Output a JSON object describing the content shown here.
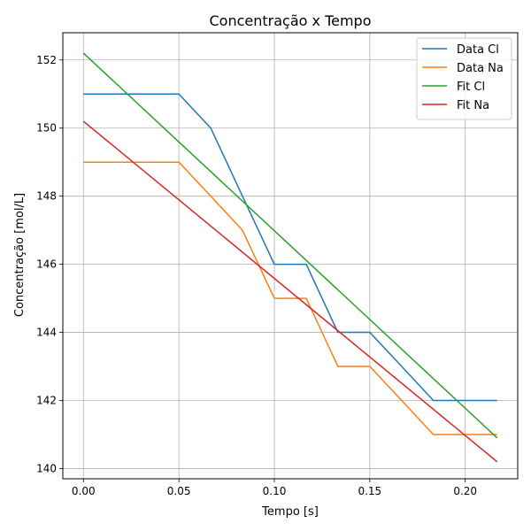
{
  "chart_data": {
    "type": "line",
    "title": "Concentração x Tempo",
    "xlabel": "Tempo [s]",
    "ylabel": "Concentração [mol/L]",
    "xlim": [
      -0.0108,
      0.2275
    ],
    "ylim": [
      139.7,
      152.8
    ],
    "xticks": [
      0.0,
      0.05,
      0.1,
      0.15,
      0.2
    ],
    "xtick_labels": [
      "0.00",
      "0.05",
      "0.10",
      "0.15",
      "0.20"
    ],
    "yticks": [
      140,
      142,
      144,
      146,
      148,
      150,
      152
    ],
    "ytick_labels": [
      "140",
      "142",
      "144",
      "146",
      "148",
      "150",
      "152"
    ],
    "grid": true,
    "legend_position": "top-right",
    "series": [
      {
        "name": "Data Cl",
        "color": "#1f77b4",
        "x": [
          0.0,
          0.0167,
          0.0333,
          0.05,
          0.0667,
          0.0833,
          0.1,
          0.1167,
          0.1333,
          0.15,
          0.1667,
          0.1833,
          0.2,
          0.2167
        ],
        "y": [
          151,
          151,
          151,
          151,
          150,
          148,
          146,
          146,
          144,
          144,
          143,
          142,
          142,
          142
        ]
      },
      {
        "name": "Data Na",
        "color": "#ff7f0e",
        "x": [
          0.0,
          0.0167,
          0.0333,
          0.05,
          0.0667,
          0.0833,
          0.1,
          0.1167,
          0.1333,
          0.15,
          0.1667,
          0.1833,
          0.2,
          0.2167
        ],
        "y": [
          149,
          149,
          149,
          149,
          148,
          147,
          145,
          145,
          143,
          143,
          142,
          141,
          141,
          141
        ]
      },
      {
        "name": "Fit Cl",
        "color": "#2ca02c",
        "x": [
          0.0,
          0.2167
        ],
        "y": [
          152.2,
          140.9
        ]
      },
      {
        "name": "Fit Na",
        "color": "#d62728",
        "x": [
          0.0,
          0.2167
        ],
        "y": [
          150.2,
          140.2
        ]
      }
    ]
  }
}
